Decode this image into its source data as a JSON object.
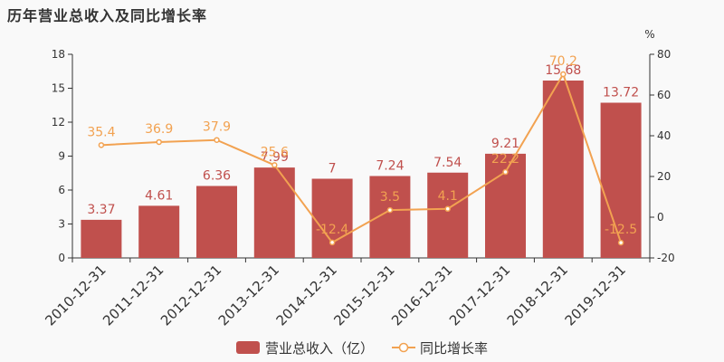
{
  "title": "历年营业总收入及同比增长率",
  "colors": {
    "bar": "#c0504d",
    "bar_label": "#c0504d",
    "line": "#f2a251",
    "axis": "#333333"
  },
  "chart_data": {
    "type": "bar",
    "categories": [
      "2010-12-31",
      "2011-12-31",
      "2012-12-31",
      "2013-12-31",
      "2014-12-31",
      "2015-12-31",
      "2016-12-31",
      "2017-12-31",
      "2018-12-31",
      "2019-12-31"
    ],
    "series": [
      {
        "name": "营业总收入（亿）",
        "type": "bar",
        "axis": "left",
        "values": [
          3.37,
          4.61,
          6.36,
          7.99,
          7,
          7.24,
          7.54,
          9.21,
          15.68,
          13.72
        ],
        "labels": [
          "3.37",
          "4.61",
          "6.36",
          "7.99",
          "7",
          "7.24",
          "7.54",
          "9.21",
          "15.68",
          "13.72"
        ]
      },
      {
        "name": "同比增长率",
        "type": "line",
        "axis": "right",
        "values": [
          35.4,
          36.9,
          37.9,
          25.6,
          -12.4,
          3.5,
          4.1,
          22.2,
          70.2,
          -12.5
        ],
        "labels": [
          "35.4",
          "36.9",
          "37.9",
          "25.6",
          "-12.4",
          "3.5",
          "4.1",
          "22.2",
          "70.2",
          "-12.5"
        ]
      }
    ],
    "y_left": {
      "min": 0,
      "max": 18,
      "ticks": [
        "0",
        "3",
        "6",
        "9",
        "12",
        "15",
        "18"
      ],
      "tick_values": [
        0,
        3,
        6,
        9,
        12,
        15,
        18
      ]
    },
    "y_right": {
      "label": "%",
      "min": -20,
      "max": 80,
      "ticks": [
        "-20",
        "0",
        "20",
        "40",
        "60",
        "80"
      ],
      "tick_values": [
        -20,
        0,
        20,
        40,
        60,
        80
      ]
    },
    "grid": false,
    "legend_position": "bottom"
  }
}
